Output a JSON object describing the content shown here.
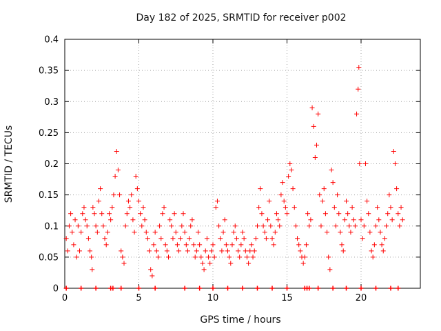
{
  "chart_data": {
    "type": "scatter",
    "title": "Day 182 of 2025, SRMTID for receiver p002",
    "xlabel": "GPS time / hours",
    "ylabel": "SRMTID / TECUs",
    "xlim": [
      0,
      24
    ],
    "ylim": [
      0,
      0.4
    ],
    "x_ticks": [
      "0",
      "5",
      "10",
      "15",
      "20"
    ],
    "y_ticks": [
      "0",
      "0.05",
      "0.1",
      "0.15",
      "0.2",
      "0.25",
      "0.3",
      "0.35",
      "0.4"
    ],
    "grid": true,
    "marker": "+",
    "color": "#ff0000",
    "series": [
      {
        "name": "SRMTID",
        "points": [
          [
            0.1,
            0.08
          ],
          [
            0.2,
            0.06
          ],
          [
            0.3,
            0.1
          ],
          [
            0.4,
            0.12
          ],
          [
            0.5,
            0.09
          ],
          [
            0.6,
            0.07
          ],
          [
            0.7,
            0.11
          ],
          [
            0.8,
            0.05
          ],
          [
            0.9,
            0.1
          ],
          [
            1.0,
            0.06
          ],
          [
            1.1,
            0.09
          ],
          [
            1.2,
            0.12
          ],
          [
            1.3,
            0.13
          ],
          [
            1.4,
            0.11
          ],
          [
            1.5,
            0.1
          ],
          [
            1.6,
            0.08
          ],
          [
            1.7,
            0.06
          ],
          [
            1.8,
            0.05
          ],
          [
            1.85,
            0.03
          ],
          [
            1.9,
            0.13
          ],
          [
            2.0,
            0.12
          ],
          [
            2.1,
            0.1
          ],
          [
            2.2,
            0.09
          ],
          [
            2.3,
            0.14
          ],
          [
            2.4,
            0.16
          ],
          [
            2.5,
            0.12
          ],
          [
            2.6,
            0.1
          ],
          [
            2.7,
            0.08
          ],
          [
            2.8,
            0.07
          ],
          [
            2.9,
            0.09
          ],
          [
            3.0,
            0.12
          ],
          [
            3.1,
            0.11
          ],
          [
            3.2,
            0.13
          ],
          [
            3.3,
            0.15
          ],
          [
            3.4,
            0.18
          ],
          [
            3.5,
            0.22
          ],
          [
            3.6,
            0.19
          ],
          [
            3.7,
            0.15
          ],
          [
            3.8,
            0.06
          ],
          [
            3.9,
            0.05
          ],
          [
            4.0,
            0.04
          ],
          [
            4.1,
            0.1
          ],
          [
            4.2,
            0.12
          ],
          [
            4.3,
            0.14
          ],
          [
            4.4,
            0.13
          ],
          [
            4.5,
            0.15
          ],
          [
            4.6,
            0.11
          ],
          [
            4.7,
            0.09
          ],
          [
            4.8,
            0.18
          ],
          [
            4.9,
            0.16
          ],
          [
            5.0,
            0.14
          ],
          [
            5.1,
            0.12
          ],
          [
            5.2,
            0.1
          ],
          [
            5.3,
            0.13
          ],
          [
            5.4,
            0.11
          ],
          [
            5.5,
            0.09
          ],
          [
            5.6,
            0.08
          ],
          [
            5.7,
            0.06
          ],
          [
            5.8,
            0.03
          ],
          [
            5.9,
            0.02
          ],
          [
            6.0,
            0.07
          ],
          [
            6.1,
            0.09
          ],
          [
            6.2,
            0.06
          ],
          [
            6.3,
            0.05
          ],
          [
            6.4,
            0.1
          ],
          [
            6.5,
            0.08
          ],
          [
            6.6,
            0.12
          ],
          [
            6.7,
            0.13
          ],
          [
            6.8,
            0.07
          ],
          [
            6.9,
            0.06
          ],
          [
            7.0,
            0.05
          ],
          [
            7.1,
            0.11
          ],
          [
            7.2,
            0.1
          ],
          [
            7.3,
            0.08
          ],
          [
            7.4,
            0.12
          ],
          [
            7.5,
            0.09
          ],
          [
            7.6,
            0.07
          ],
          [
            7.7,
            0.06
          ],
          [
            7.8,
            0.08
          ],
          [
            7.9,
            0.1
          ],
          [
            8.0,
            0.12
          ],
          [
            8.1,
            0.09
          ],
          [
            8.2,
            0.07
          ],
          [
            8.3,
            0.06
          ],
          [
            8.4,
            0.08
          ],
          [
            8.5,
            0.1
          ],
          [
            8.6,
            0.11
          ],
          [
            8.7,
            0.07
          ],
          [
            8.8,
            0.05
          ],
          [
            8.9,
            0.06
          ],
          [
            9.0,
            0.09
          ],
          [
            9.1,
            0.07
          ],
          [
            9.2,
            0.05
          ],
          [
            9.3,
            0.04
          ],
          [
            9.4,
            0.03
          ],
          [
            9.5,
            0.06
          ],
          [
            9.6,
            0.08
          ],
          [
            9.7,
            0.05
          ],
          [
            9.8,
            0.04
          ],
          [
            9.9,
            0.06
          ],
          [
            10.0,
            0.07
          ],
          [
            10.1,
            0.05
          ],
          [
            10.2,
            0.13
          ],
          [
            10.3,
            0.14
          ],
          [
            10.4,
            0.1
          ],
          [
            10.5,
            0.08
          ],
          [
            10.6,
            0.06
          ],
          [
            10.7,
            0.09
          ],
          [
            10.8,
            0.11
          ],
          [
            10.9,
            0.07
          ],
          [
            11.0,
            0.06
          ],
          [
            11.1,
            0.05
          ],
          [
            11.2,
            0.04
          ],
          [
            11.3,
            0.07
          ],
          [
            11.4,
            0.09
          ],
          [
            11.5,
            0.1
          ],
          [
            11.6,
            0.08
          ],
          [
            11.7,
            0.06
          ],
          [
            11.8,
            0.05
          ],
          [
            11.9,
            0.07
          ],
          [
            12.0,
            0.09
          ],
          [
            12.1,
            0.08
          ],
          [
            12.2,
            0.06
          ],
          [
            12.3,
            0.05
          ],
          [
            12.4,
            0.04
          ],
          [
            12.5,
            0.06
          ],
          [
            12.6,
            0.07
          ],
          [
            12.7,
            0.05
          ],
          [
            12.8,
            0.06
          ],
          [
            12.9,
            0.08
          ],
          [
            13.0,
            0.1
          ],
          [
            13.1,
            0.13
          ],
          [
            13.2,
            0.16
          ],
          [
            13.3,
            0.12
          ],
          [
            13.4,
            0.1
          ],
          [
            13.5,
            0.09
          ],
          [
            13.6,
            0.08
          ],
          [
            13.7,
            0.11
          ],
          [
            13.8,
            0.14
          ],
          [
            13.9,
            0.1
          ],
          [
            14.0,
            0.08
          ],
          [
            14.1,
            0.07
          ],
          [
            14.2,
            0.09
          ],
          [
            14.3,
            0.12
          ],
          [
            14.4,
            0.11
          ],
          [
            14.5,
            0.1
          ],
          [
            14.6,
            0.15
          ],
          [
            14.7,
            0.17
          ],
          [
            14.8,
            0.14
          ],
          [
            14.9,
            0.13
          ],
          [
            15.0,
            0.12
          ],
          [
            15.1,
            0.18
          ],
          [
            15.2,
            0.2
          ],
          [
            15.3,
            0.19
          ],
          [
            15.4,
            0.16
          ],
          [
            15.5,
            0.13
          ],
          [
            15.6,
            0.1
          ],
          [
            15.7,
            0.08
          ],
          [
            15.8,
            0.07
          ],
          [
            15.9,
            0.06
          ],
          [
            16.0,
            0.05
          ],
          [
            16.1,
            0.04
          ],
          [
            16.2,
            0.05
          ],
          [
            16.3,
            0.07
          ],
          [
            16.4,
            0.12
          ],
          [
            16.5,
            0.1
          ],
          [
            16.6,
            0.11
          ],
          [
            16.7,
            0.29
          ],
          [
            16.8,
            0.26
          ],
          [
            16.9,
            0.21
          ],
          [
            17.0,
            0.23
          ],
          [
            17.1,
            0.28
          ],
          [
            17.2,
            0.15
          ],
          [
            17.3,
            0.1
          ],
          [
            17.4,
            0.14
          ],
          [
            17.5,
            0.16
          ],
          [
            17.6,
            0.12
          ],
          [
            17.7,
            0.09
          ],
          [
            17.8,
            0.05
          ],
          [
            17.9,
            0.03
          ],
          [
            18.0,
            0.19
          ],
          [
            18.1,
            0.17
          ],
          [
            18.2,
            0.13
          ],
          [
            18.3,
            0.1
          ],
          [
            18.4,
            0.15
          ],
          [
            18.5,
            0.12
          ],
          [
            18.6,
            0.09
          ],
          [
            18.7,
            0.07
          ],
          [
            18.8,
            0.06
          ],
          [
            18.9,
            0.11
          ],
          [
            19.0,
            0.14
          ],
          [
            19.1,
            0.12
          ],
          [
            19.2,
            0.1
          ],
          [
            19.3,
            0.09
          ],
          [
            19.4,
            0.13
          ],
          [
            19.5,
            0.11
          ],
          [
            19.6,
            0.1
          ],
          [
            19.7,
            0.28
          ],
          [
            19.8,
            0.32
          ],
          [
            19.85,
            0.355
          ],
          [
            19.9,
            0.2
          ],
          [
            20.0,
            0.11
          ],
          [
            20.1,
            0.08
          ],
          [
            20.2,
            0.1
          ],
          [
            20.3,
            0.2
          ],
          [
            20.4,
            0.14
          ],
          [
            20.5,
            0.12
          ],
          [
            20.6,
            0.09
          ],
          [
            20.7,
            0.06
          ],
          [
            20.8,
            0.05
          ],
          [
            20.9,
            0.07
          ],
          [
            21.0,
            0.1
          ],
          [
            21.1,
            0.13
          ],
          [
            21.2,
            0.11
          ],
          [
            21.3,
            0.09
          ],
          [
            21.4,
            0.07
          ],
          [
            21.5,
            0.06
          ],
          [
            21.6,
            0.08
          ],
          [
            21.7,
            0.1
          ],
          [
            21.8,
            0.12
          ],
          [
            21.9,
            0.15
          ],
          [
            22.0,
            0.13
          ],
          [
            22.1,
            0.11
          ],
          [
            22.2,
            0.22
          ],
          [
            22.3,
            0.2
          ],
          [
            22.4,
            0.16
          ],
          [
            22.5,
            0.12
          ],
          [
            22.6,
            0.1
          ],
          [
            22.7,
            0.13
          ],
          [
            22.8,
            0.11
          ]
        ]
      }
    ],
    "zero_markers_x": [
      0.1,
      1.1,
      2.1,
      3.1,
      3.25,
      3.8,
      5.0,
      6.1,
      8.1,
      9.1,
      10.0,
      11.0,
      12.0,
      13.0,
      14.0,
      15.0,
      16.2,
      16.35,
      16.5,
      17.1,
      18.1,
      19.0,
      20.0,
      21.0,
      22.0,
      22.5
    ]
  }
}
